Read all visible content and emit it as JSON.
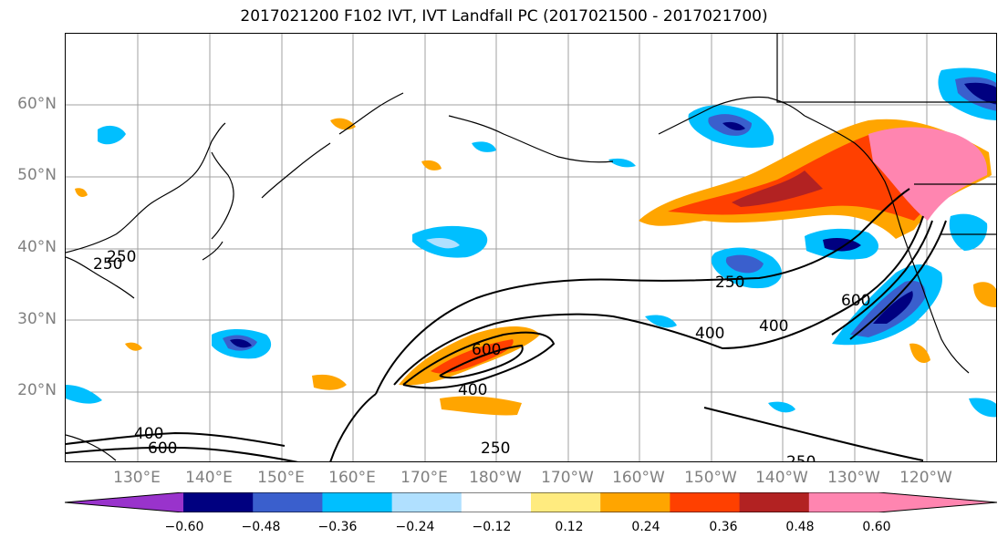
{
  "title": "2017021200 F102 IVT, IVT Landfall PC (2017021500 - 2017021700)",
  "lat_labels": [
    "60°N",
    "50°N",
    "40°N",
    "30°N",
    "20°N"
  ],
  "lon_labels": [
    "130°E",
    "140°E",
    "150°E",
    "160°E",
    "170°E",
    "180°W",
    "170°W",
    "160°W",
    "150°W",
    "140°W",
    "130°W",
    "120°W"
  ],
  "contour_labels": [
    "250",
    "400",
    "600",
    "600",
    "400",
    "250",
    "400",
    "600",
    "400",
    "250",
    "250",
    "250"
  ],
  "colorbar": {
    "ticks": [
      "−0.60",
      "−0.48",
      "−0.36",
      "−0.24",
      "−0.12",
      "0.12",
      "0.24",
      "0.36",
      "0.48",
      "0.60"
    ],
    "colors": [
      "#9933cc",
      "#000080",
      "#3a5fcd",
      "#00bfff",
      "#b0e0ff",
      "#ffffff",
      "#ffeb7f",
      "#ffa500",
      "#ff4000",
      "#b22222",
      "#ff85b0",
      "#ff85b0"
    ]
  }
}
